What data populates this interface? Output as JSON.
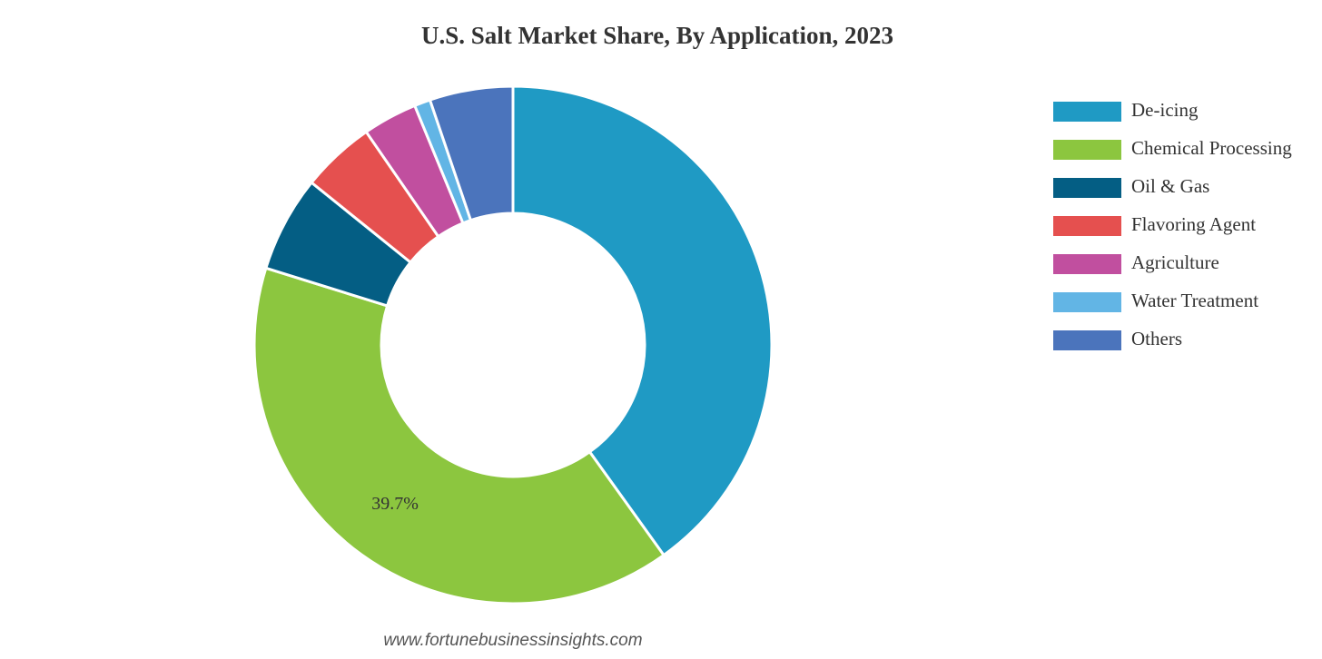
{
  "chart_data": {
    "type": "donut",
    "title": "U.S. Salt Market Share, By Application, 2023",
    "categories": [
      "De-icing",
      "Chemical Processing",
      "Oil & Gas",
      "Flavoring Agent",
      "Agriculture",
      "Water Treatment",
      "Others"
    ],
    "values": [
      40.1,
      39.7,
      6.0,
      4.6,
      3.4,
      1.0,
      5.2
    ],
    "value_labels": [
      null,
      "39.7%",
      null,
      null,
      null,
      null,
      null
    ],
    "colors": [
      "#1f9ac4",
      "#8cc63f",
      "#045e84",
      "#e5504f",
      "#c14f9f",
      "#62b5e5",
      "#4b74bc"
    ],
    "legend": "right",
    "source": "www.fortunebusinessinsights.com"
  }
}
